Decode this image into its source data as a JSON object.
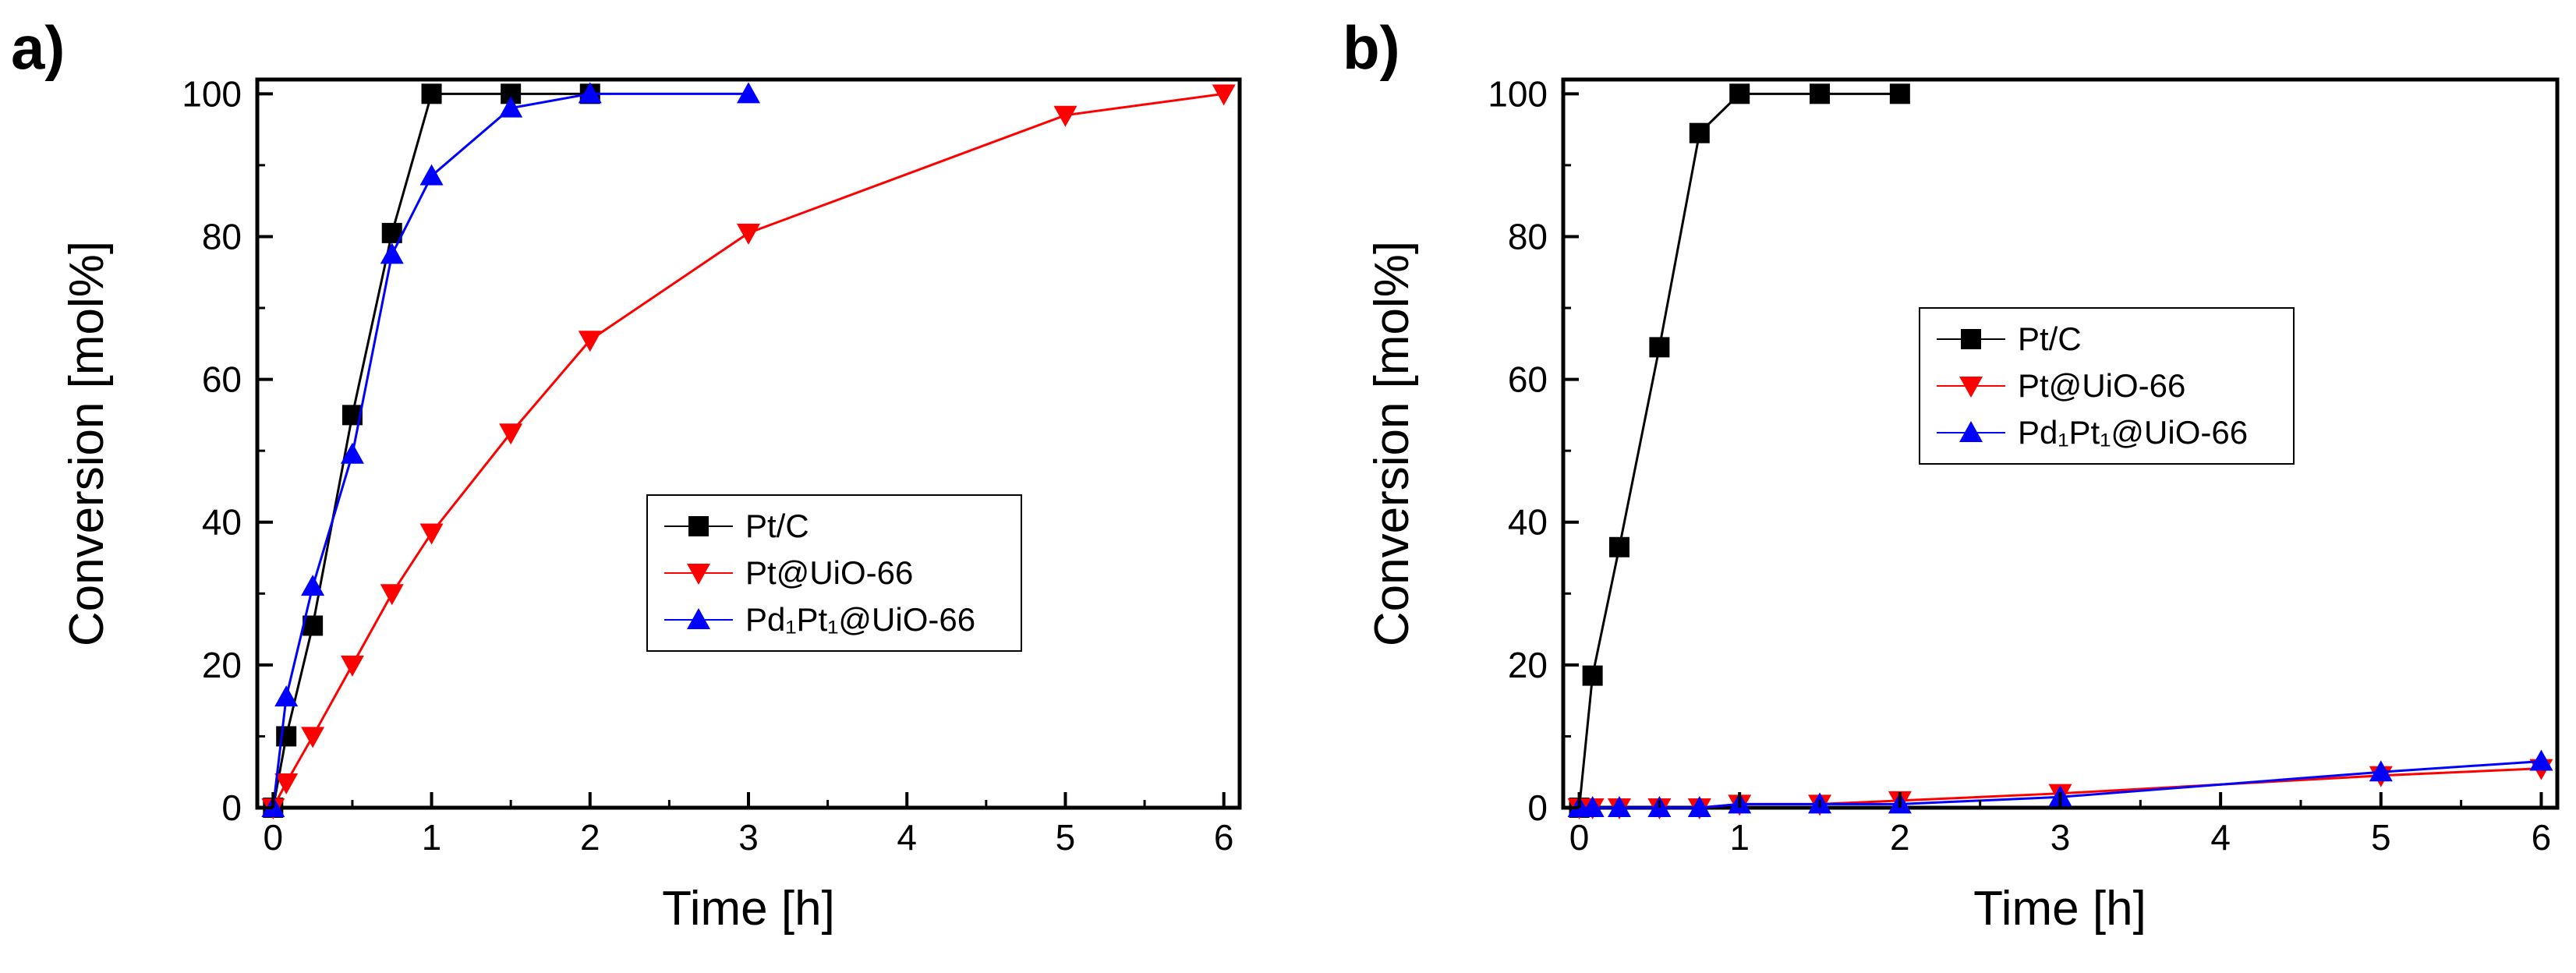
{
  "chart_data": [
    {
      "type": "line",
      "panel_label": "a)",
      "title": "",
      "xlabel": "Time [h]",
      "ylabel": "Conversion [mol%]",
      "xlim": [
        -0.1,
        6.1
      ],
      "ylim": [
        0,
        102
      ],
      "xticks": [
        0,
        1,
        2,
        3,
        4,
        5,
        6
      ],
      "yticks": [
        0,
        20,
        40,
        60,
        80,
        100
      ],
      "legend_position": "center-right",
      "series": [
        {
          "name": "Pt/C",
          "color": "#000000",
          "marker": "square",
          "x": [
            0,
            0.083,
            0.25,
            0.5,
            0.75,
            1,
            1.5,
            2
          ],
          "y": [
            0,
            10,
            25.5,
            55,
            80.5,
            100,
            100,
            100
          ]
        },
        {
          "name": "Pt@UiO-66",
          "color": "#ff0000",
          "marker": "triangle-down",
          "x": [
            0,
            0.083,
            0.25,
            0.5,
            0.75,
            1,
            1.5,
            2,
            3,
            5,
            6
          ],
          "y": [
            0,
            3.5,
            10,
            20,
            30,
            38.5,
            52.5,
            65.5,
            80.5,
            97,
            100
          ]
        },
        {
          "name": "Pd₁Pt₁@UiO-66",
          "color": "#0000ff",
          "marker": "triangle-up",
          "x": [
            0,
            0.083,
            0.25,
            0.5,
            0.75,
            1,
            1.5,
            2,
            3
          ],
          "y": [
            0,
            15.5,
            31,
            49.5,
            77.5,
            88.5,
            98,
            100,
            100
          ]
        }
      ]
    },
    {
      "type": "line",
      "panel_label": "b)",
      "title": "",
      "xlabel": "Time [h]",
      "ylabel": "Conversion [mol%]",
      "xlim": [
        -0.1,
        6.1
      ],
      "ylim": [
        0,
        102
      ],
      "xticks": [
        0,
        1,
        2,
        3,
        4,
        5,
        6
      ],
      "yticks": [
        0,
        20,
        40,
        60,
        80,
        100
      ],
      "legend_position": "center-right",
      "series": [
        {
          "name": "Pt/C",
          "color": "#000000",
          "marker": "square",
          "x": [
            0,
            0.083,
            0.25,
            0.5,
            0.75,
            1,
            1.5,
            2
          ],
          "y": [
            0,
            18.5,
            36.5,
            64.5,
            94.5,
            100,
            100,
            100
          ]
        },
        {
          "name": "Pt@UiO-66",
          "color": "#ff0000",
          "marker": "triangle-down",
          "x": [
            0,
            0.083,
            0.25,
            0.5,
            0.75,
            1,
            1.5,
            2,
            3,
            5,
            6
          ],
          "y": [
            0,
            0,
            0,
            0,
            0,
            0.5,
            0.5,
            1,
            2,
            4.5,
            5.5
          ]
        },
        {
          "name": "Pd₁Pt₁@UiO-66",
          "color": "#0000ff",
          "marker": "triangle-up",
          "x": [
            0,
            0.083,
            0.25,
            0.5,
            0.75,
            1,
            1.5,
            2,
            3,
            5,
            6
          ],
          "y": [
            0,
            0,
            0,
            0,
            0,
            0.5,
            0.5,
            0.5,
            1.5,
            5,
            6.5
          ]
        }
      ]
    }
  ]
}
